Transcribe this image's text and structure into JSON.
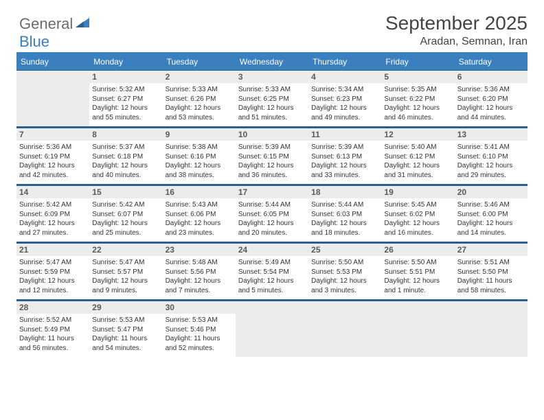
{
  "logo": {
    "line1": "General",
    "line2": "Blue"
  },
  "header": {
    "month": "September 2025",
    "location": "Aradan, Semnan, Iran"
  },
  "style": {
    "header_bg": "#3b7fbf",
    "header_text": "#ffffff",
    "daybar_bg": "#ececec",
    "daybar_text": "#5a5a5a",
    "border": "#2a5f8f",
    "body_text": "#333333",
    "title_fontsize": 28,
    "loc_fontsize": 16,
    "dayhead_fontsize": 12,
    "cell_fontsize": 10
  },
  "dayHeaders": [
    "Sunday",
    "Monday",
    "Tuesday",
    "Wednesday",
    "Thursday",
    "Friday",
    "Saturday"
  ],
  "weeks": [
    [
      null,
      {
        "n": "1",
        "sr": "5:32 AM",
        "ss": "6:27 PM",
        "dl": "12 hours and 55 minutes."
      },
      {
        "n": "2",
        "sr": "5:33 AM",
        "ss": "6:26 PM",
        "dl": "12 hours and 53 minutes."
      },
      {
        "n": "3",
        "sr": "5:33 AM",
        "ss": "6:25 PM",
        "dl": "12 hours and 51 minutes."
      },
      {
        "n": "4",
        "sr": "5:34 AM",
        "ss": "6:23 PM",
        "dl": "12 hours and 49 minutes."
      },
      {
        "n": "5",
        "sr": "5:35 AM",
        "ss": "6:22 PM",
        "dl": "12 hours and 46 minutes."
      },
      {
        "n": "6",
        "sr": "5:36 AM",
        "ss": "6:20 PM",
        "dl": "12 hours and 44 minutes."
      }
    ],
    [
      {
        "n": "7",
        "sr": "5:36 AM",
        "ss": "6:19 PM",
        "dl": "12 hours and 42 minutes."
      },
      {
        "n": "8",
        "sr": "5:37 AM",
        "ss": "6:18 PM",
        "dl": "12 hours and 40 minutes."
      },
      {
        "n": "9",
        "sr": "5:38 AM",
        "ss": "6:16 PM",
        "dl": "12 hours and 38 minutes."
      },
      {
        "n": "10",
        "sr": "5:39 AM",
        "ss": "6:15 PM",
        "dl": "12 hours and 36 minutes."
      },
      {
        "n": "11",
        "sr": "5:39 AM",
        "ss": "6:13 PM",
        "dl": "12 hours and 33 minutes."
      },
      {
        "n": "12",
        "sr": "5:40 AM",
        "ss": "6:12 PM",
        "dl": "12 hours and 31 minutes."
      },
      {
        "n": "13",
        "sr": "5:41 AM",
        "ss": "6:10 PM",
        "dl": "12 hours and 29 minutes."
      }
    ],
    [
      {
        "n": "14",
        "sr": "5:42 AM",
        "ss": "6:09 PM",
        "dl": "12 hours and 27 minutes."
      },
      {
        "n": "15",
        "sr": "5:42 AM",
        "ss": "6:07 PM",
        "dl": "12 hours and 25 minutes."
      },
      {
        "n": "16",
        "sr": "5:43 AM",
        "ss": "6:06 PM",
        "dl": "12 hours and 23 minutes."
      },
      {
        "n": "17",
        "sr": "5:44 AM",
        "ss": "6:05 PM",
        "dl": "12 hours and 20 minutes."
      },
      {
        "n": "18",
        "sr": "5:44 AM",
        "ss": "6:03 PM",
        "dl": "12 hours and 18 minutes."
      },
      {
        "n": "19",
        "sr": "5:45 AM",
        "ss": "6:02 PM",
        "dl": "12 hours and 16 minutes."
      },
      {
        "n": "20",
        "sr": "5:46 AM",
        "ss": "6:00 PM",
        "dl": "12 hours and 14 minutes."
      }
    ],
    [
      {
        "n": "21",
        "sr": "5:47 AM",
        "ss": "5:59 PM",
        "dl": "12 hours and 12 minutes."
      },
      {
        "n": "22",
        "sr": "5:47 AM",
        "ss": "5:57 PM",
        "dl": "12 hours and 9 minutes."
      },
      {
        "n": "23",
        "sr": "5:48 AM",
        "ss": "5:56 PM",
        "dl": "12 hours and 7 minutes."
      },
      {
        "n": "24",
        "sr": "5:49 AM",
        "ss": "5:54 PM",
        "dl": "12 hours and 5 minutes."
      },
      {
        "n": "25",
        "sr": "5:50 AM",
        "ss": "5:53 PM",
        "dl": "12 hours and 3 minutes."
      },
      {
        "n": "26",
        "sr": "5:50 AM",
        "ss": "5:51 PM",
        "dl": "12 hours and 1 minute."
      },
      {
        "n": "27",
        "sr": "5:51 AM",
        "ss": "5:50 PM",
        "dl": "11 hours and 58 minutes."
      }
    ],
    [
      {
        "n": "28",
        "sr": "5:52 AM",
        "ss": "5:49 PM",
        "dl": "11 hours and 56 minutes."
      },
      {
        "n": "29",
        "sr": "5:53 AM",
        "ss": "5:47 PM",
        "dl": "11 hours and 54 minutes."
      },
      {
        "n": "30",
        "sr": "5:53 AM",
        "ss": "5:46 PM",
        "dl": "11 hours and 52 minutes."
      },
      null,
      null,
      null,
      null
    ]
  ],
  "labels": {
    "sunrise": "Sunrise:",
    "sunset": "Sunset:",
    "daylight": "Daylight:"
  }
}
